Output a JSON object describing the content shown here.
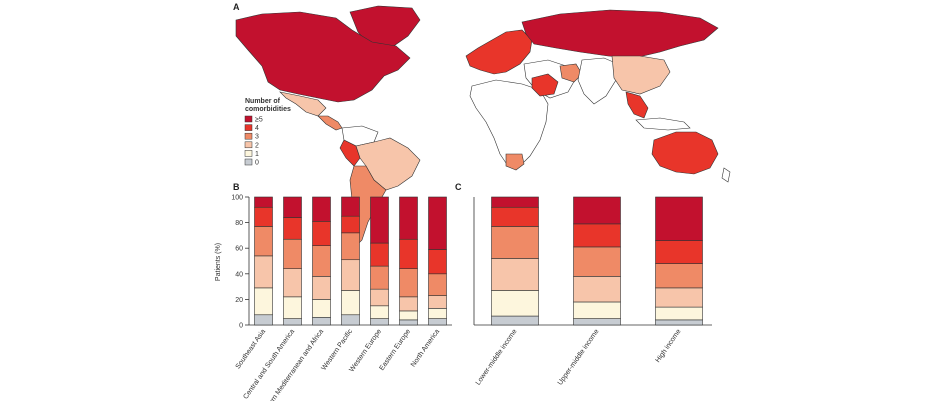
{
  "panels": {
    "a": "A",
    "b": "B",
    "c": "C"
  },
  "colors": {
    "ge5": "#c2112e",
    "c4": "#e8352a",
    "c3": "#ef8a66",
    "c2": "#f7c5aa",
    "c1": "#fdf6dd",
    "c0": "#c7ccd2",
    "land_none": "#ffffff",
    "border": "#333333"
  },
  "legend": {
    "title_line1": "Number of",
    "title_line2": "comorbidities",
    "items": [
      {
        "label": "≥5",
        "key": "ge5"
      },
      {
        "label": "4",
        "key": "c4"
      },
      {
        "label": "3",
        "key": "c3"
      },
      {
        "label": "2",
        "key": "c2"
      },
      {
        "label": "1",
        "key": "c1"
      },
      {
        "label": "0",
        "key": "c0"
      }
    ]
  },
  "map_regions": [
    {
      "name": "canada-usa",
      "level": "ge5"
    },
    {
      "name": "mexico",
      "level": "c2"
    },
    {
      "name": "central-america",
      "level": "c3"
    },
    {
      "name": "brazil",
      "level": "c2"
    },
    {
      "name": "argentina",
      "level": "c3"
    },
    {
      "name": "peru",
      "level": "c4"
    },
    {
      "name": "europe",
      "level": "c4"
    },
    {
      "name": "russia",
      "level": "ge5"
    },
    {
      "name": "greenland",
      "level": "ge5"
    },
    {
      "name": "saudi-arabia",
      "level": "c4"
    },
    {
      "name": "iran",
      "level": "c3"
    },
    {
      "name": "china",
      "level": "c2"
    },
    {
      "name": "southeast-asia",
      "level": "c4"
    },
    {
      "name": "australia",
      "level": "c4"
    },
    {
      "name": "south-africa",
      "level": "c3"
    }
  ],
  "stack_order": [
    "c0",
    "c1",
    "c2",
    "c3",
    "c4",
    "ge5"
  ],
  "chart_data": [
    {
      "type": "bar",
      "stacked": true,
      "panel": "B",
      "ylabel": "Patients (%)",
      "ylim": [
        0,
        100
      ],
      "yticks": [
        0,
        20,
        40,
        60,
        80,
        100
      ],
      "categories": [
        "Southeast Asia",
        "Central and South America",
        "Eastern Mediterranean and Africa",
        "Western Pacific",
        "Western Europe",
        "Eastern Europe",
        "North America"
      ],
      "series": [
        {
          "name": "0",
          "values": [
            8,
            5,
            6,
            8,
            5,
            4,
            5
          ]
        },
        {
          "name": "1",
          "values": [
            21,
            17,
            14,
            19,
            10,
            7,
            8
          ]
        },
        {
          "name": "2",
          "values": [
            25,
            22,
            18,
            24,
            13,
            11,
            10
          ]
        },
        {
          "name": "3",
          "values": [
            23,
            23,
            24,
            21,
            18,
            22,
            17
          ]
        },
        {
          "name": "4",
          "values": [
            15,
            17,
            19,
            13,
            18,
            23,
            19
          ]
        },
        {
          "name": "≥5",
          "values": [
            8,
            16,
            19,
            15,
            36,
            33,
            41
          ]
        }
      ]
    },
    {
      "type": "bar",
      "stacked": true,
      "panel": "C",
      "ylim": [
        0,
        100
      ],
      "categories": [
        "Lower-middle income",
        "Upper-middle income",
        "High income"
      ],
      "series": [
        {
          "name": "0",
          "values": [
            7,
            5,
            4
          ]
        },
        {
          "name": "1",
          "values": [
            20,
            13,
            10
          ]
        },
        {
          "name": "2",
          "values": [
            25,
            20,
            15
          ]
        },
        {
          "name": "3",
          "values": [
            25,
            23,
            19
          ]
        },
        {
          "name": "4",
          "values": [
            15,
            18,
            18
          ]
        },
        {
          "name": "≥5",
          "values": [
            8,
            21,
            34
          ]
        }
      ]
    }
  ]
}
